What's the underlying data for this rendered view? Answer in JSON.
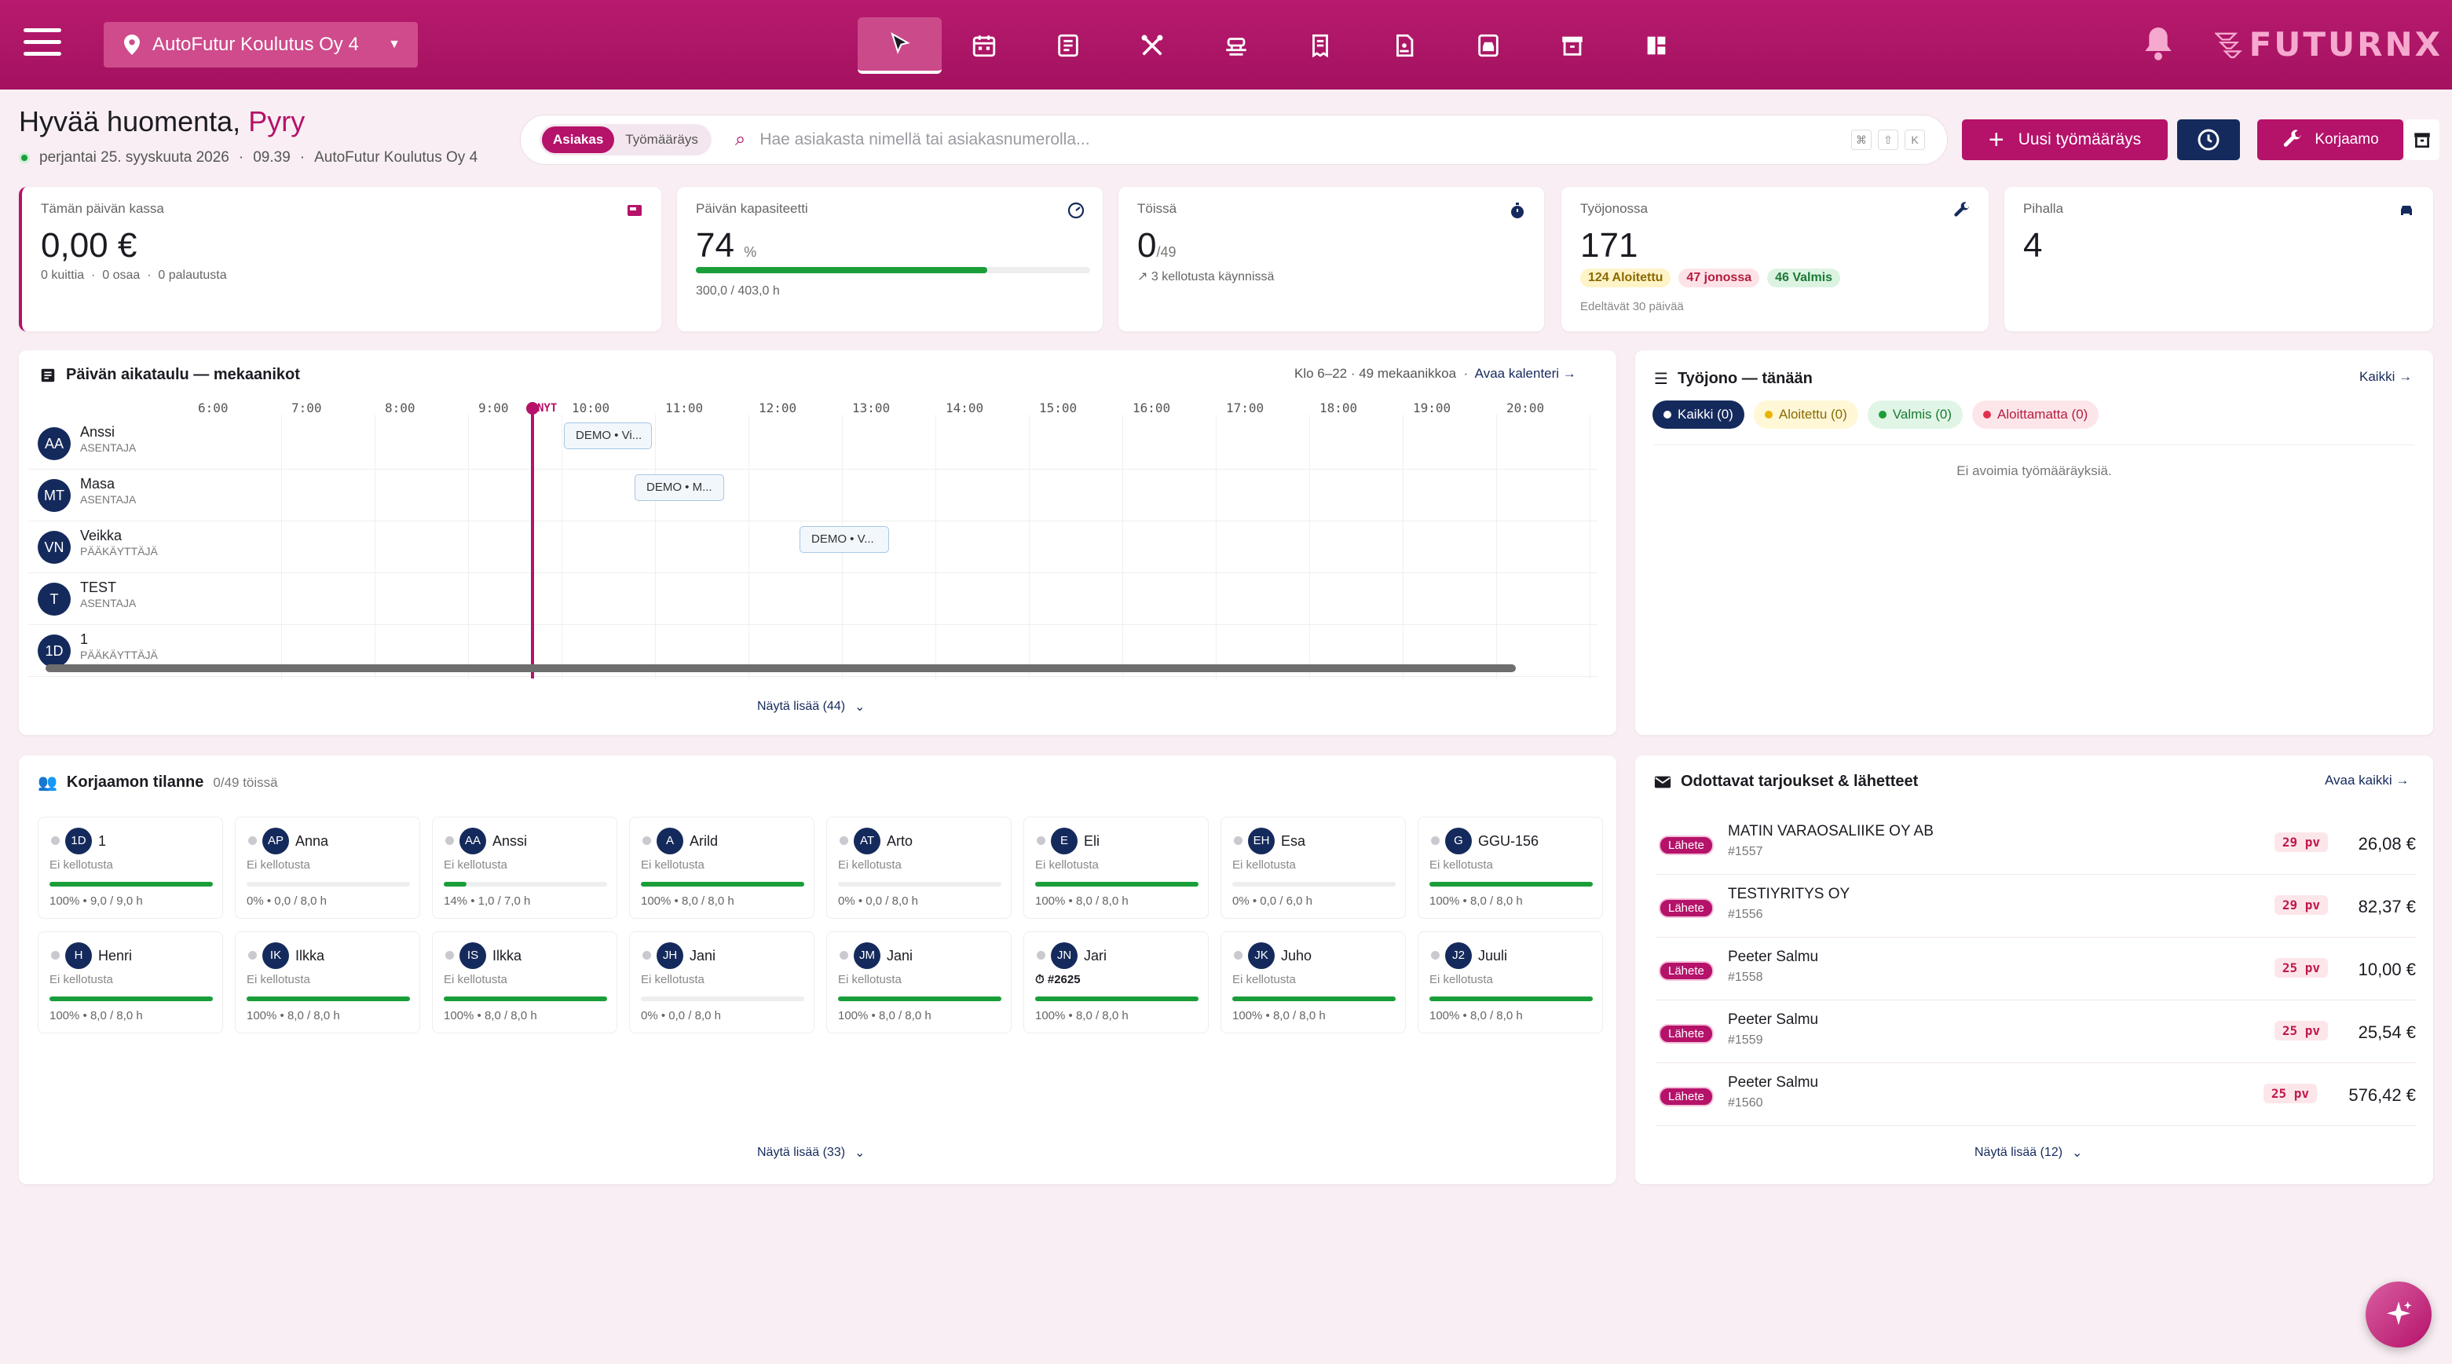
{
  "header": {
    "company": "AutoFutur Koulutus Oy 4",
    "logo_text": "FUTURNX",
    "nav_icons": [
      "cursor-icon",
      "calendar-icon",
      "list-icon",
      "tools-icon",
      "lift-icon",
      "invoice-icon",
      "document-icon",
      "car-service-icon",
      "archive-icon",
      "dashboard-icon"
    ]
  },
  "greeting": {
    "prefix": "Hyvää huomenta,",
    "name": "Pyry",
    "date": "perjantai 25. syyskuuta 2026",
    "time": "09.39",
    "company": "AutoFutur Koulutus Oy 4"
  },
  "search": {
    "seg_on": "Asiakas",
    "seg_off": "Työmääräys",
    "placeholder": "Hae asiakasta nimellä tai asiakasnumerolla...",
    "keys": [
      "⌘",
      "⇧",
      "K"
    ]
  },
  "actions": {
    "new_order": "Uusi työmääräys",
    "workshop": "Korjaamo"
  },
  "stats": {
    "cash": {
      "label": "Tämän päivän kassa",
      "value": "0,00 €",
      "sub1": "0 kuittia",
      "sub2": "0 osaa",
      "sub3": "0 palautusta"
    },
    "capacity": {
      "label": "Päivän kapasiteetti",
      "value": "74",
      "unit": "%",
      "fill": 0.74,
      "sub": "300,0 / 403,0 h"
    },
    "working": {
      "label": "Töissä",
      "value": "0",
      "unit": "/49",
      "sub": "3 kellotusta käynnissä"
    },
    "queue": {
      "label": "Työjonossa",
      "value": "171",
      "p1": "124 Aloitettu",
      "p2": "47 jonossa",
      "p3": "46 Valmis",
      "sub": "Edeltävät 30 päivää"
    },
    "yard": {
      "label": "Pihalla",
      "value": "4"
    }
  },
  "schedule": {
    "title": "Päivän aikataulu — mekaanikot",
    "meta": "Klo 6–22 · 49 mekaanikkoa",
    "open_calendar": "Avaa kalenteri →",
    "now_label": "NYT",
    "hours": [
      "6:00",
      "7:00",
      "8:00",
      "9:00",
      "10:00",
      "11:00",
      "12:00",
      "13:00",
      "14:00",
      "15:00",
      "16:00",
      "17:00",
      "18:00",
      "19:00",
      "20:00"
    ],
    "mechanics": [
      {
        "initials": "AA",
        "name": "Anssi",
        "role": "ASENTAJA",
        "event": "DEMO • Vi..."
      },
      {
        "initials": "MT",
        "name": "Masa",
        "role": "ASENTAJA",
        "event": "DEMO • M..."
      },
      {
        "initials": "VN",
        "name": "Veikka",
        "role": "PÄÄKÄYTTÄJÄ",
        "event": "DEMO • V..."
      },
      {
        "initials": "T",
        "name": "TEST",
        "role": "ASENTAJA",
        "event": ""
      },
      {
        "initials": "1D",
        "name": "1",
        "role": "PÄÄKÄYTTÄJÄ",
        "event": ""
      }
    ],
    "show_more": "Näytä lisää (44)"
  },
  "queue_panel": {
    "title": "Työjono — tänään",
    "all_link": "Kaikki →",
    "filters": [
      "Kaikki (0)",
      "Aloitettu (0)",
      "Valmis (0)",
      "Aloittamatta (0)"
    ],
    "empty": "Ei avoimia työmääräyksiä."
  },
  "workshop": {
    "title": "Korjaamon tilanne",
    "count": "0/49 töissä",
    "no_clock": "Ei kellotusta",
    "workers": [
      {
        "initials": "1D",
        "name": "1",
        "fill": 1.0,
        "text": "100% • 9,0 / 9,0 h"
      },
      {
        "initials": "AP",
        "name": "Anna",
        "fill": 0,
        "text": "0% • 0,0 / 8,0 h"
      },
      {
        "initials": "AA",
        "name": "Anssi",
        "fill": 0.14,
        "text": "14% • 1,0 / 7,0 h"
      },
      {
        "initials": "A",
        "name": "Arild",
        "fill": 1.0,
        "text": "100% • 8,0 / 8,0 h"
      },
      {
        "initials": "AT",
        "name": "Arto",
        "fill": 0,
        "text": "0% • 0,0 / 8,0 h"
      },
      {
        "initials": "E",
        "name": "Eli",
        "fill": 1.0,
        "text": "100% • 8,0 / 8,0 h"
      },
      {
        "initials": "EH",
        "name": "Esa",
        "fill": 0,
        "text": "0% • 0,0 / 6,0 h"
      },
      {
        "initials": "G",
        "name": "GGU-156",
        "fill": 1.0,
        "text": "100% • 8,0 / 8,0 h"
      },
      {
        "initials": "H",
        "name": "Henri",
        "fill": 1.0,
        "text": "100% • 8,0 / 8,0 h"
      },
      {
        "initials": "IK",
        "name": "Ilkka",
        "fill": 1.0,
        "text": "100% • 8,0 / 8,0 h"
      },
      {
        "initials": "IS",
        "name": "Ilkka",
        "fill": 1.0,
        "text": "100% • 8,0 / 8,0 h"
      },
      {
        "initials": "JH",
        "name": "Jani",
        "fill": 0,
        "text": "0% • 0,0 / 8,0 h"
      },
      {
        "initials": "JM",
        "name": "Jani",
        "fill": 1.0,
        "text": "100% • 8,0 / 8,0 h"
      },
      {
        "initials": "JN",
        "name": "Jari",
        "fill": 1.0,
        "text": "100% • 8,0 / 8,0 h",
        "job": "#2625"
      },
      {
        "initials": "JK",
        "name": "Juho",
        "fill": 1.0,
        "text": "100% • 8,0 / 8,0 h"
      },
      {
        "initials": "J2",
        "name": "Juuli",
        "fill": 1.0,
        "text": "100% • 8,0 / 8,0 h"
      }
    ],
    "show_more": "Näytä lisää (33)"
  },
  "offers": {
    "title": "Odottavat tarjoukset & lähetteet",
    "open_all": "Avaa kaikki →",
    "tag": "Lähete",
    "items": [
      {
        "name": "MATIN VARAOSALIIKE OY AB",
        "num": "#1557",
        "days": "29 pv",
        "amount": "26,08 €"
      },
      {
        "name": "TESTIYRITYS OY",
        "num": "#1556",
        "days": "29 pv",
        "amount": "82,37 €"
      },
      {
        "name": "Peeter Salmu",
        "num": "#1558",
        "days": "25 pv",
        "amount": "10,00 €"
      },
      {
        "name": "Peeter Salmu",
        "num": "#1559",
        "days": "25 pv",
        "amount": "25,54 €"
      },
      {
        "name": "Peeter Salmu",
        "num": "#1560",
        "days": "25 pv",
        "amount": "576,42 €"
      }
    ],
    "show_more": "Näytä lisää (12)"
  }
}
